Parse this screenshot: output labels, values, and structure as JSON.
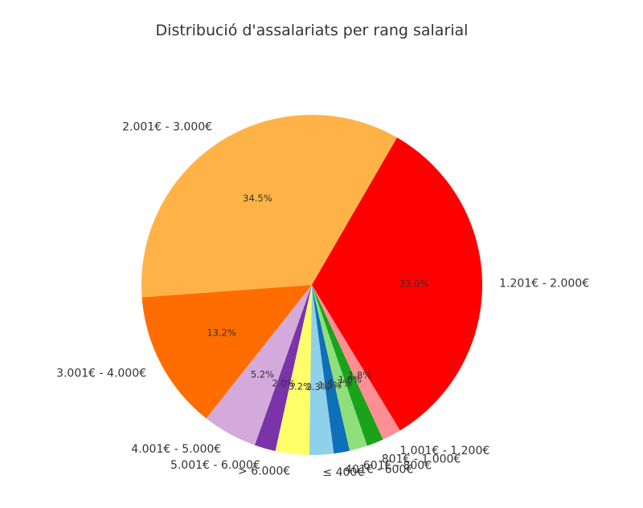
{
  "chart_data": {
    "type": "pie",
    "title": "Distribució d'assalariats per rang salarial",
    "slices": [
      {
        "label": "2.001€ - 3.000€",
        "value": 34.5,
        "pct_label": "34.5%",
        "color": "#ffb347"
      },
      {
        "label": "3.001€ - 4.000€",
        "value": 13.2,
        "pct_label": "13.2%",
        "color": "#ff6d00"
      },
      {
        "label": "4.001€ - 5.000€",
        "value": 5.2,
        "pct_label": "5.2%",
        "color": "#d4aadc"
      },
      {
        "label": "5.001€ - 6.000€",
        "value": 2.0,
        "pct_label": "2.0%",
        "color": "#7a33a8"
      },
      {
        "label": "> 6.000€",
        "value": 3.2,
        "pct_label": "3.2%",
        "color": "#ffff6a"
      },
      {
        "label": "≤ 400€",
        "value": 2.3,
        "pct_label": "2.3%",
        "color": "#8fd0ea"
      },
      {
        "label": "401€ - 600€",
        "value": 1.5,
        "pct_label": "1.5%",
        "color": "#0f6fb8"
      },
      {
        "label": "601€ - 800€",
        "value": 1.7,
        "pct_label": "1.7%",
        "color": "#8fe07a"
      },
      {
        "label": "801€ - 1.000€",
        "value": 1.6,
        "pct_label": "1.6%",
        "color": "#1aa31a"
      },
      {
        "label": "1.001€ - 1.200€",
        "value": 1.8,
        "pct_label": "1.8%",
        "color": "#ff8f94"
      },
      {
        "label": "1.201€ - 2.000€",
        "value": 33.0,
        "pct_label": "33.0%",
        "color": "#ff0000"
      }
    ],
    "start_angle_deg": 60,
    "direction": "counterclockwise"
  }
}
